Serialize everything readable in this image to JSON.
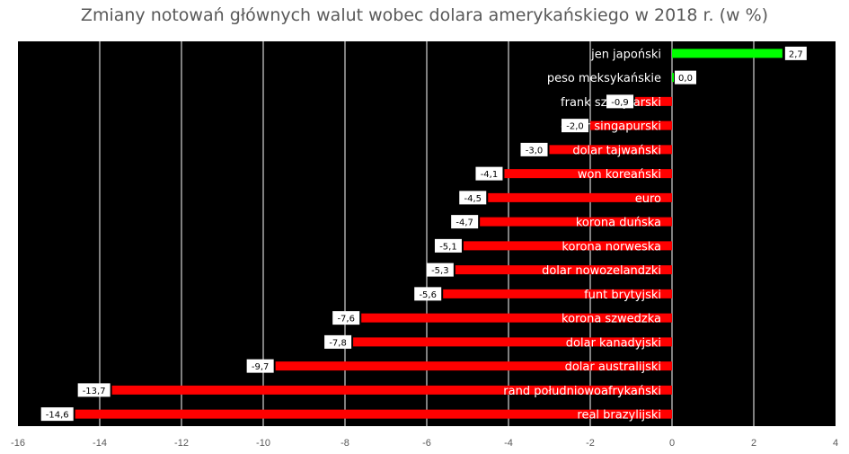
{
  "chart_data": {
    "type": "bar",
    "orientation": "horizontal",
    "title": "Zmiany notowań głównych walut wobec dolara amerykańskiego w 2018 r. (w %)",
    "xlim": [
      -16,
      4
    ],
    "x_ticks": [
      -16,
      -14,
      -12,
      -10,
      -8,
      -6,
      -4,
      -2,
      0,
      2,
      4
    ],
    "grid": true,
    "background_color": "#000000",
    "gridline_color": "#ffffff",
    "positive_color": "#00ff00",
    "negative_color": "#ff0000",
    "categories": [
      "jen japoński",
      "peso meksykańskie",
      "frank szwajcarski",
      "dolar singapurski",
      "dolar tajwański",
      "won koreański",
      "euro",
      "korona duńska",
      "korona norweska",
      "dolar nowozelandzki",
      "funt brytyjski",
      "korona szwedzka",
      "dolar kanadyjski",
      "dolar australijski",
      "rand południowoafrykański",
      "real brazylijski"
    ],
    "values": [
      2.7,
      0.0,
      -0.9,
      -2.0,
      -3.0,
      -4.1,
      -4.5,
      -4.7,
      -5.1,
      -5.3,
      -5.6,
      -7.6,
      -7.8,
      -9.7,
      -13.7,
      -14.6
    ],
    "value_labels": [
      "2,7",
      "0,0",
      "-0,9",
      "-2,0",
      "-3,0",
      "-4,1",
      "-4,5",
      "-4,7",
      "-5,1",
      "-5,3",
      "-5,6",
      "-7,6",
      "-7,8",
      "-9,7",
      "-13,7",
      "-14,6"
    ]
  }
}
